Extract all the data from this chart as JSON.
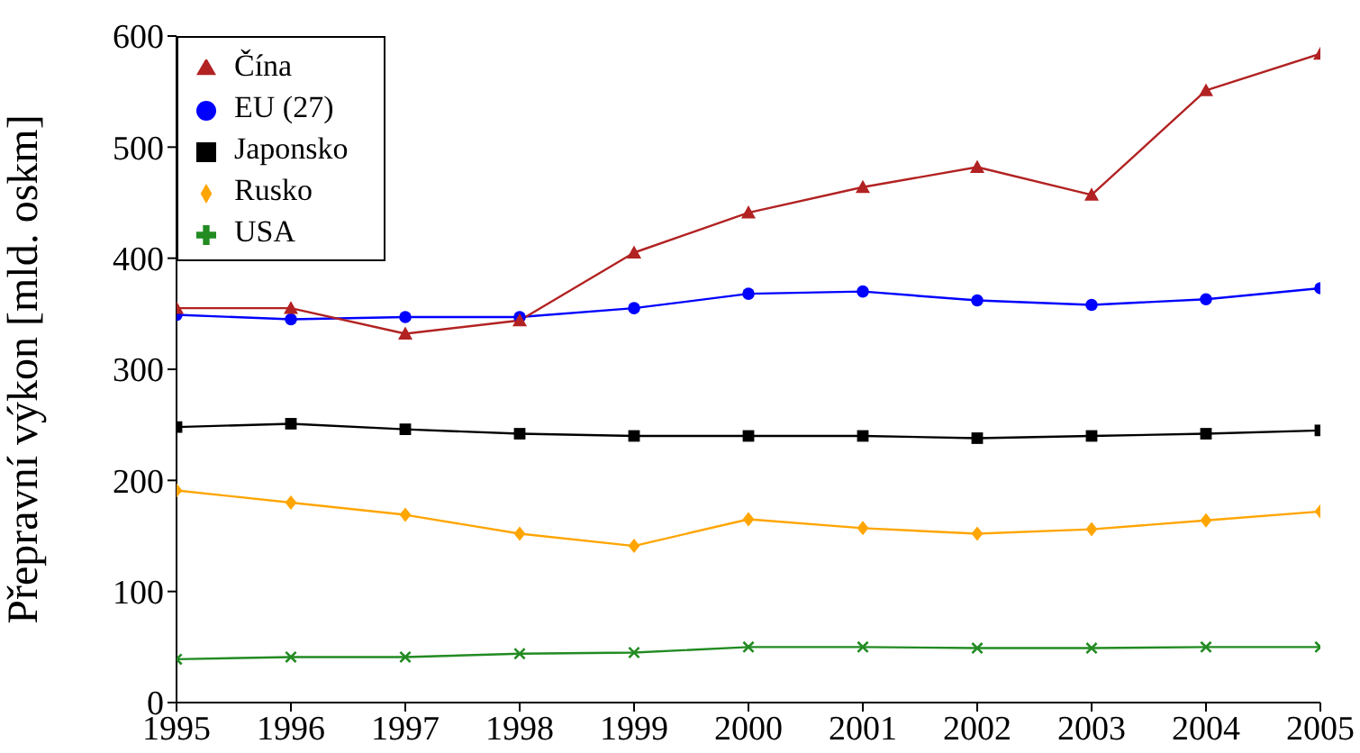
{
  "chart_data": {
    "type": "line",
    "ylabel": "Přepravní výkon [mld. oskm]",
    "x": [
      1995,
      1996,
      1997,
      1998,
      1999,
      2000,
      2001,
      2002,
      2003,
      2004,
      2005
    ],
    "xlim": [
      1995,
      2005
    ],
    "xticks": [
      1995,
      1996,
      1997,
      1998,
      1999,
      2000,
      2001,
      2002,
      2003,
      2004,
      2005
    ],
    "ylim": [
      0,
      600
    ],
    "yticks": [
      0,
      100,
      200,
      300,
      400,
      500,
      600
    ],
    "grid": false,
    "legend": "top left",
    "line_style": "solid",
    "series": [
      {
        "name": "Čína",
        "color": "#b22222",
        "marker": "triangle",
        "values": [
          355,
          355,
          332,
          344,
          405,
          441,
          464,
          482,
          457,
          551,
          584
        ]
      },
      {
        "name": "EU (27)",
        "color": "#0000ff",
        "marker": "circle",
        "values": [
          349,
          345,
          347,
          347,
          355,
          368,
          370,
          362,
          358,
          363,
          373
        ]
      },
      {
        "name": "Japonsko",
        "color": "#000000",
        "marker": "square",
        "values": [
          248,
          251,
          246,
          242,
          240,
          240,
          240,
          238,
          240,
          242,
          245
        ]
      },
      {
        "name": "Rusko",
        "color": "#ffa500",
        "marker": "diamond",
        "values": [
          191,
          180,
          169,
          152,
          141,
          165,
          157,
          152,
          156,
          164,
          172
        ]
      },
      {
        "name": "USA",
        "color": "#228b22",
        "marker": "cross",
        "values": [
          39,
          41,
          41,
          44,
          45,
          50,
          50,
          49,
          49,
          50,
          50
        ]
      }
    ]
  }
}
